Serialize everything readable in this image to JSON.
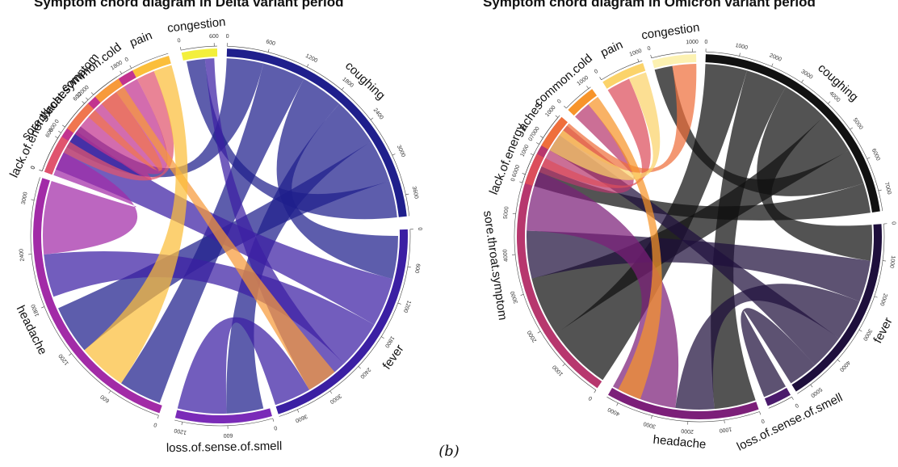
{
  "captions": {
    "panel": "(b)"
  },
  "chart_data": [
    {
      "type": "chord",
      "title": "Symptom chord diagram in Delta variant period",
      "sectors": [
        {
          "name": "coughing",
          "color": "#1f1f8c",
          "ticks": [
            "0",
            "600",
            "1200",
            "1800",
            "2400",
            "3000",
            "3600"
          ]
        },
        {
          "name": "fever",
          "color": "#3b1fa3",
          "ticks": [
            "0",
            "600",
            "1200",
            "1800",
            "2400",
            "3000",
            "3600"
          ]
        },
        {
          "name": "loss.of.sense.of.smell",
          "color": "#7a2bb8",
          "ticks": [
            "0",
            "600",
            "1200"
          ]
        },
        {
          "name": "headache",
          "color": "#a22ba7",
          "ticks": [
            "0",
            "600",
            "1200",
            "1800",
            "2400",
            "3000"
          ]
        },
        {
          "name": "sore.throat.symptom",
          "color": "#c2338f",
          "ticks": [
            "0",
            "600",
            "1200",
            "1800"
          ]
        },
        {
          "name": "lack.of.energy",
          "color": "#e0546e",
          "ticks": [
            "0",
            "600"
          ]
        },
        {
          "name": "aches",
          "color": "#f0764f",
          "ticks": [
            "0",
            "600"
          ]
        },
        {
          "name": "common.cold",
          "color": "#f79a3a",
          "ticks": [
            "0"
          ]
        },
        {
          "name": "pain",
          "color": "#fbbe3a",
          "ticks": [
            "0"
          ]
        },
        {
          "name": "congestion",
          "color": "#f3ef3c",
          "ticks": [
            "0",
            "600"
          ]
        }
      ]
    },
    {
      "type": "chord",
      "title": "Symptom chord diagram in Omicron variant period",
      "sectors": [
        {
          "name": "coughing",
          "color": "#111111",
          "ticks": [
            "0",
            "1000",
            "2000",
            "3000",
            "4000",
            "5000",
            "6000",
            "7000"
          ]
        },
        {
          "name": "fever",
          "color": "#1e0f3c",
          "ticks": [
            "0",
            "1000",
            "2000",
            "3000",
            "4000",
            "5000"
          ]
        },
        {
          "name": "loss.of.sense.of.smell",
          "color": "#4a1a6c",
          "ticks": [
            "0"
          ]
        },
        {
          "name": "headache",
          "color": "#7c1f79",
          "ticks": [
            "0",
            "1000",
            "2000",
            "3000",
            "4000"
          ]
        },
        {
          "name": "sore.throat.symptom",
          "color": "#b7376e",
          "ticks": [
            "0",
            "1000",
            "2000",
            "3000",
            "4000",
            "5000",
            "6000",
            "7000"
          ]
        },
        {
          "name": "lack.of.energy",
          "color": "#dc4e5b",
          "ticks": [
            "0",
            "1000"
          ]
        },
        {
          "name": "aches",
          "color": "#ef6f3b",
          "ticks": [
            "0",
            "1000"
          ]
        },
        {
          "name": "common.cold",
          "color": "#f7942a",
          "ticks": [
            "0",
            "1000"
          ]
        },
        {
          "name": "pain",
          "color": "#fbd36a",
          "ticks": [
            "0",
            "1000"
          ]
        },
        {
          "name": "congestion",
          "color": "#fcf1b1",
          "ticks": [
            "0",
            "1000"
          ]
        }
      ]
    }
  ]
}
